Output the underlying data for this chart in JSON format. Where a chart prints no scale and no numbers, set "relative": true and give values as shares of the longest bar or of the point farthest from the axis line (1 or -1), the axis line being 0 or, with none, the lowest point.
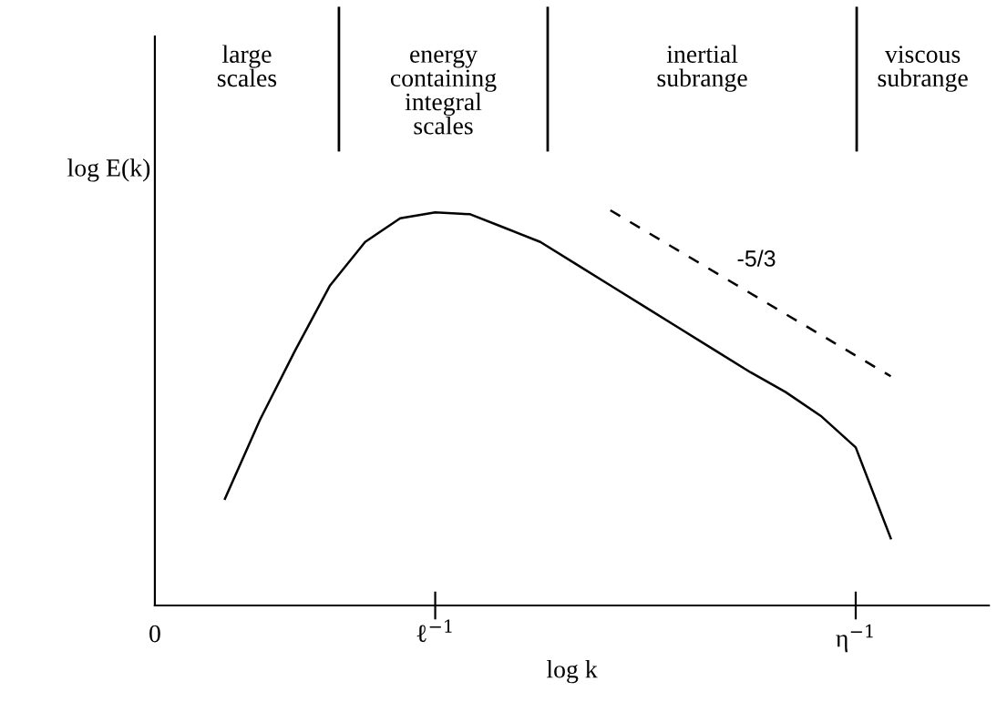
{
  "chart_data": {
    "type": "line",
    "relative": true,
    "xlabel": "log k",
    "ylabel": "log E(k)",
    "categories": [
      "0",
      null,
      null,
      null,
      null,
      null,
      null,
      null,
      "ℓ$^{−1}$",
      null,
      null,
      null,
      null,
      null,
      null,
      null,
      null,
      null,
      null,
      null,
      "η$^{−1}$",
      null,
      null,
      null
    ],
    "series": [
      {
        "color": "#000000",
        "line_style": "solid",
        "values": [
          null,
          null,
          0.27,
          0.47,
          0.645,
          0.81,
          0.92,
          0.98,
          0.995,
          0.99,
          0.955,
          0.92,
          0.865,
          0.81,
          0.755,
          0.7,
          0.645,
          0.59,
          0.54,
          0.48,
          0.4,
          0.17,
          null,
          null
        ]
      },
      {
        "color": "#000000",
        "line_style": "dashed",
        "values": [
          null,
          null,
          null,
          null,
          null,
          null,
          null,
          null,
          null,
          null,
          null,
          null,
          null,
          1.0,
          null,
          null,
          null,
          null,
          null,
          null,
          null,
          0.58,
          null,
          null
        ]
      }
    ],
    "annotations": [
      "large\nscales",
      "energy\ncontaining\nintegral\nscales",
      "inertial\nsubrange",
      "viscous\nsubrange",
      "-5/3"
    ],
    "grid": false,
    "legend": false
  }
}
